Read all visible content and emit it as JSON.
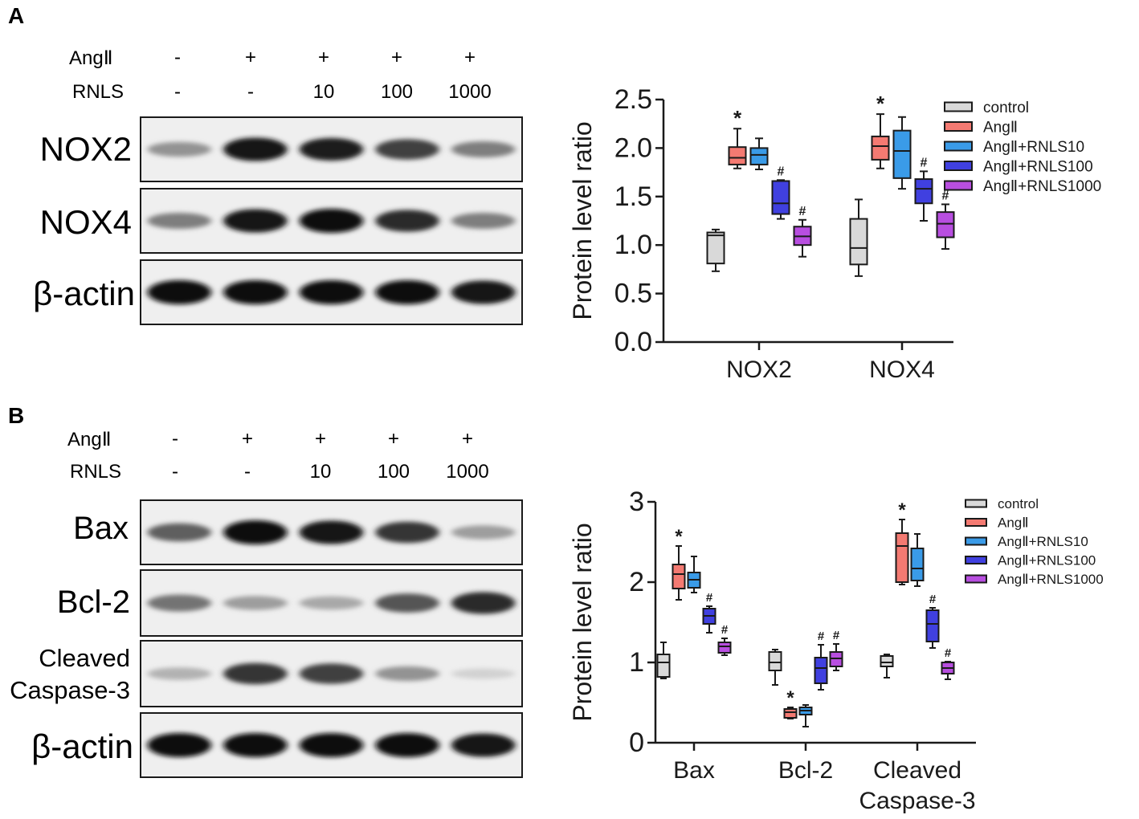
{
  "panels": [
    {
      "letter": "A",
      "treatment_rows": [
        {
          "label": "AngⅡ",
          "values": [
            "-",
            "+",
            "+",
            "+",
            "+"
          ]
        },
        {
          "label": "RNLS",
          "values": [
            "-",
            "-",
            "10",
            "100",
            "1000"
          ]
        }
      ],
      "blots": [
        {
          "label": "NOX2",
          "intensities": [
            0.35,
            0.95,
            0.9,
            0.75,
            0.45
          ]
        },
        {
          "label": "NOX4",
          "intensities": [
            0.45,
            0.95,
            1.0,
            0.85,
            0.45
          ]
        },
        {
          "label": "β-actin",
          "intensities": [
            1.0,
            1.0,
            1.0,
            1.0,
            0.95
          ]
        }
      ]
    },
    {
      "letter": "B",
      "treatment_rows": [
        {
          "label": "AngⅡ",
          "values": [
            "-",
            "+",
            "+",
            "+",
            "+"
          ]
        },
        {
          "label": "RNLS",
          "values": [
            "-",
            "-",
            "10",
            "100",
            "1000"
          ]
        }
      ],
      "blots": [
        {
          "label": "Bax",
          "intensities": [
            0.6,
            1.0,
            0.95,
            0.8,
            0.3
          ]
        },
        {
          "label": "Bcl-2",
          "intensities": [
            0.5,
            0.3,
            0.25,
            0.65,
            0.85
          ]
        },
        {
          "label": "Cleaved\nCaspase-3",
          "intensities": [
            0.2,
            0.8,
            0.75,
            0.35,
            0.05
          ]
        },
        {
          "label": "β-actin",
          "intensities": [
            1.0,
            1.0,
            1.0,
            1.0,
            0.95
          ]
        }
      ]
    }
  ],
  "chart_data": [
    {
      "type": "box",
      "ylabel": "Protein level ratio",
      "ylim": [
        0,
        2.5
      ],
      "yticks": [
        "0.0",
        "0.5",
        "1.0",
        "1.5",
        "2.0",
        "2.5"
      ],
      "categories": [
        "NOX2",
        "NOX4"
      ],
      "legend_position": "top-right",
      "series": [
        {
          "name": "control",
          "color": "#d9d9d9",
          "boxes": [
            {
              "min": 0.73,
              "q1": 0.81,
              "median": 1.1,
              "q3": 1.13,
              "max": 1.16
            },
            {
              "min": 0.68,
              "q1": 0.8,
              "median": 0.97,
              "q3": 1.27,
              "max": 1.47
            }
          ]
        },
        {
          "name": "AngⅡ",
          "color": "#f47a72",
          "boxes": [
            {
              "min": 1.79,
              "q1": 1.83,
              "median": 1.9,
              "q3": 2.01,
              "max": 2.2,
              "marker": "*"
            },
            {
              "min": 1.79,
              "q1": 1.88,
              "median": 2.02,
              "q3": 2.12,
              "max": 2.35,
              "marker": "*"
            }
          ]
        },
        {
          "name": "AngⅡ+RNLS10",
          "color": "#3a9be8",
          "boxes": [
            {
              "min": 1.78,
              "q1": 1.83,
              "median": 1.93,
              "q3": 2.0,
              "max": 2.1
            },
            {
              "min": 1.58,
              "q1": 1.69,
              "median": 1.97,
              "q3": 2.18,
              "max": 2.32
            }
          ]
        },
        {
          "name": "AngⅡ+RNLS100",
          "color": "#4040e0",
          "boxes": [
            {
              "min": 1.27,
              "q1": 1.32,
              "median": 1.43,
              "q3": 1.66,
              "max": 1.67,
              "marker": "#"
            },
            {
              "min": 1.25,
              "q1": 1.43,
              "median": 1.58,
              "q3": 1.68,
              "max": 1.76,
              "marker": "#"
            }
          ]
        },
        {
          "name": "AngⅡ+RNLS1000",
          "color": "#b84ee0",
          "boxes": [
            {
              "min": 0.88,
              "q1": 1.0,
              "median": 1.09,
              "q3": 1.19,
              "max": 1.26,
              "marker": "#"
            },
            {
              "min": 0.96,
              "q1": 1.08,
              "median": 1.22,
              "q3": 1.34,
              "max": 1.42,
              "marker": "#"
            }
          ]
        }
      ]
    },
    {
      "type": "box",
      "ylabel": "Protein level ratio",
      "ylim": [
        0,
        3
      ],
      "yticks": [
        "0",
        "1",
        "2",
        "3"
      ],
      "categories": [
        "Bax",
        "Bcl-2",
        "Cleaved\nCaspase-3"
      ],
      "legend_position": "top-right",
      "series": [
        {
          "name": "control",
          "color": "#d9d9d9",
          "boxes": [
            {
              "min": 0.8,
              "q1": 0.82,
              "median": 1.0,
              "q3": 1.1,
              "max": 1.25
            },
            {
              "min": 0.72,
              "q1": 0.9,
              "median": 1.0,
              "q3": 1.13,
              "max": 1.16
            },
            {
              "min": 0.81,
              "q1": 0.95,
              "median": 1.0,
              "q3": 1.08,
              "max": 1.1
            }
          ]
        },
        {
          "name": "AngⅡ",
          "color": "#f47a72",
          "boxes": [
            {
              "min": 1.78,
              "q1": 1.92,
              "median": 2.1,
              "q3": 2.22,
              "max": 2.45,
              "marker": "*"
            },
            {
              "min": 0.3,
              "q1": 0.31,
              "median": 0.38,
              "q3": 0.42,
              "max": 0.44,
              "marker": "*"
            },
            {
              "min": 1.97,
              "q1": 2.0,
              "median": 2.45,
              "q3": 2.61,
              "max": 2.78,
              "marker": "*"
            }
          ]
        },
        {
          "name": "AngⅡ+RNLS10",
          "color": "#3a9be8",
          "boxes": [
            {
              "min": 1.87,
              "q1": 1.93,
              "median": 2.03,
              "q3": 2.12,
              "max": 2.32
            },
            {
              "min": 0.2,
              "q1": 0.35,
              "median": 0.4,
              "q3": 0.44,
              "max": 0.47
            },
            {
              "min": 1.95,
              "q1": 2.02,
              "median": 2.17,
              "q3": 2.42,
              "max": 2.6
            }
          ]
        },
        {
          "name": "AngⅡ+RNLS100",
          "color": "#4040e0",
          "boxes": [
            {
              "min": 1.37,
              "q1": 1.48,
              "median": 1.58,
              "q3": 1.67,
              "max": 1.7,
              "marker": "#"
            },
            {
              "min": 0.66,
              "q1": 0.74,
              "median": 0.93,
              "q3": 1.06,
              "max": 1.22,
              "marker": "#"
            },
            {
              "min": 1.18,
              "q1": 1.26,
              "median": 1.48,
              "q3": 1.65,
              "max": 1.68,
              "marker": "#"
            }
          ]
        },
        {
          "name": "AngⅡ+RNLS1000",
          "color": "#b84ee0",
          "boxes": [
            {
              "min": 1.09,
              "q1": 1.12,
              "median": 1.2,
              "q3": 1.25,
              "max": 1.3,
              "marker": "#"
            },
            {
              "min": 0.9,
              "q1": 0.95,
              "median": 1.05,
              "q3": 1.13,
              "max": 1.23,
              "marker": "#"
            },
            {
              "min": 0.79,
              "q1": 0.86,
              "median": 0.93,
              "q3": 1.0,
              "max": 1.01,
              "marker": "#"
            }
          ]
        }
      ]
    }
  ]
}
